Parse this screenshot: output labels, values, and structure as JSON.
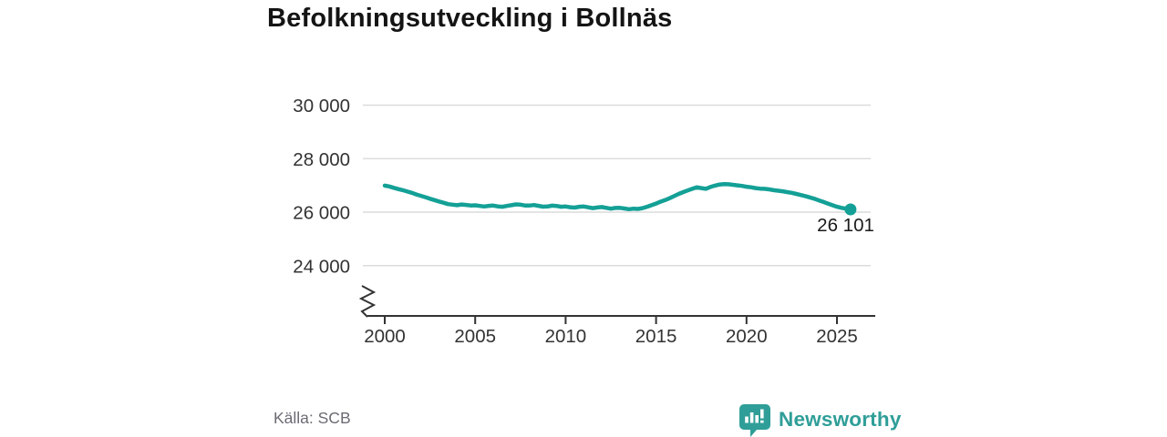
{
  "title": "Befolkningsutveckling i Bollnäs",
  "source": "Källa: SCB",
  "logo": {
    "text": "Newsworthy",
    "icon": "bar-chart-speech-bubble-icon"
  },
  "colors": {
    "line": "#14a096",
    "marker": "#14a096",
    "logo_teal": "#2f9e98",
    "grid": "#dcdcdc",
    "axis": "#333333",
    "tick_label": "#333333",
    "annotation_text": "#1a1a1a",
    "title_text": "#141414",
    "source_text": "#6b6b74",
    "background": "#ffffff"
  },
  "chart_data": {
    "type": "line",
    "title": "Befolkningsutveckling i Bollnäs",
    "xlabel": "",
    "ylabel": "",
    "legend": "none",
    "grid": "horizontal",
    "axis_break": true,
    "xlim": [
      1999.7,
      2027.2
    ],
    "ylim": [
      23400,
      30600
    ],
    "xticks": {
      "values": [
        2000,
        2005,
        2010,
        2015,
        2020,
        2025
      ],
      "labels": [
        "2000",
        "2005",
        "2010",
        "2015",
        "2020",
        "2025"
      ]
    },
    "yticks": {
      "values": [
        24000,
        26000,
        28000,
        30000
      ],
      "labels": [
        "24 000",
        "26 000",
        "28 000",
        "30 000"
      ]
    },
    "end_annotation": {
      "label": "26 101",
      "value": 26101,
      "x": 2025.75
    },
    "x": [
      2000.0,
      2000.25,
      2000.5,
      2000.75,
      2001.0,
      2001.25,
      2001.5,
      2001.75,
      2002.0,
      2002.25,
      2002.5,
      2002.75,
      2003.0,
      2003.25,
      2003.5,
      2003.75,
      2004.0,
      2004.25,
      2004.5,
      2004.75,
      2005.0,
      2005.25,
      2005.5,
      2005.75,
      2006.0,
      2006.25,
      2006.5,
      2006.75,
      2007.0,
      2007.25,
      2007.5,
      2007.75,
      2008.0,
      2008.25,
      2008.5,
      2008.75,
      2009.0,
      2009.25,
      2009.5,
      2009.75,
      2010.0,
      2010.25,
      2010.5,
      2010.75,
      2011.0,
      2011.25,
      2011.5,
      2011.75,
      2012.0,
      2012.25,
      2012.5,
      2012.75,
      2013.0,
      2013.25,
      2013.5,
      2013.75,
      2014.0,
      2014.25,
      2014.5,
      2014.75,
      2015.0,
      2015.25,
      2015.5,
      2015.75,
      2016.0,
      2016.25,
      2016.5,
      2016.75,
      2017.0,
      2017.25,
      2017.5,
      2017.75,
      2018.0,
      2018.25,
      2018.5,
      2018.75,
      2019.0,
      2019.25,
      2019.5,
      2019.75,
      2020.0,
      2020.25,
      2020.5,
      2020.75,
      2021.0,
      2021.25,
      2021.5,
      2021.75,
      2022.0,
      2022.25,
      2022.5,
      2022.75,
      2023.0,
      2023.25,
      2023.5,
      2023.75,
      2024.0,
      2024.25,
      2024.5,
      2024.75,
      2025.0,
      2025.25,
      2025.5,
      2025.75
    ],
    "y": [
      26990,
      26960,
      26910,
      26860,
      26820,
      26770,
      26720,
      26660,
      26610,
      26560,
      26500,
      26450,
      26400,
      26350,
      26300,
      26280,
      26260,
      26285,
      26270,
      26250,
      26255,
      26230,
      26210,
      26235,
      26245,
      26215,
      26200,
      26230,
      26260,
      26290,
      26280,
      26250,
      26245,
      26265,
      26235,
      26205,
      26210,
      26240,
      26230,
      26200,
      26210,
      26185,
      26170,
      26200,
      26210,
      26180,
      26150,
      26175,
      26190,
      26160,
      26130,
      26155,
      26160,
      26135,
      26110,
      26130,
      26120,
      26150,
      26200,
      26260,
      26320,
      26390,
      26450,
      26520,
      26600,
      26680,
      26750,
      26810,
      26870,
      26930,
      26900,
      26870,
      26940,
      26990,
      27030,
      27050,
      27040,
      27020,
      27000,
      26980,
      26950,
      26930,
      26900,
      26880,
      26870,
      26850,
      26820,
      26800,
      26780,
      26750,
      26720,
      26680,
      26640,
      26600,
      26550,
      26500,
      26440,
      26380,
      26320,
      26260,
      26200,
      26160,
      26130,
      26101
    ]
  }
}
